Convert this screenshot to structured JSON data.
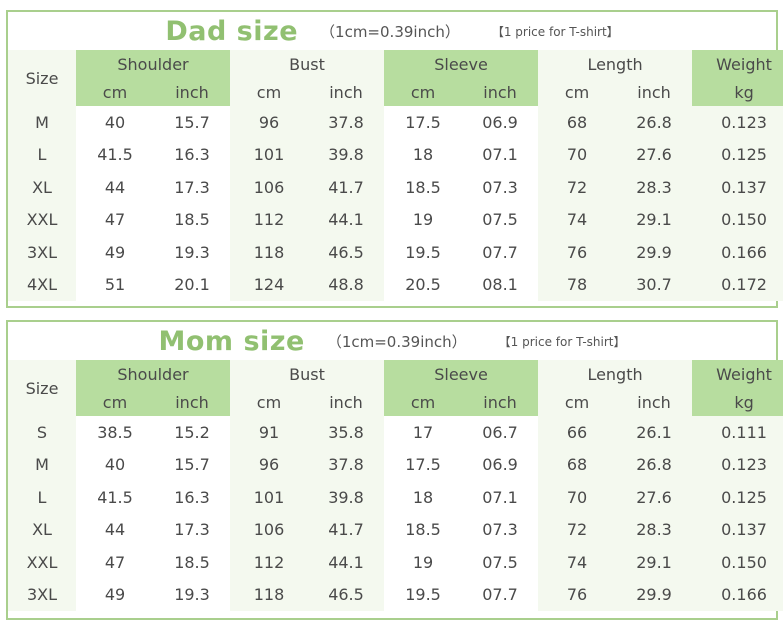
{
  "headers": {
    "size": "Size",
    "groups": [
      "Shoulder",
      "Bust",
      "Sleeve",
      "Length",
      "Weight"
    ],
    "sub_cm": "cm",
    "sub_inch": "inch",
    "sub_kg": "kg"
  },
  "dad": {
    "title": "Dad size",
    "unit": "（1cm=0.39inch）",
    "note": "【1 price for T-shirt】",
    "rows": [
      [
        "M",
        "40",
        "15.7",
        "96",
        "37.8",
        "17.5",
        "06.9",
        "68",
        "26.8",
        "0.123"
      ],
      [
        "L",
        "41.5",
        "16.3",
        "101",
        "39.8",
        "18",
        "07.1",
        "70",
        "27.6",
        "0.125"
      ],
      [
        "XL",
        "44",
        "17.3",
        "106",
        "41.7",
        "18.5",
        "07.3",
        "72",
        "28.3",
        "0.137"
      ],
      [
        "XXL",
        "47",
        "18.5",
        "112",
        "44.1",
        "19",
        "07.5",
        "74",
        "29.1",
        "0.150"
      ],
      [
        "3XL",
        "49",
        "19.3",
        "118",
        "46.5",
        "19.5",
        "07.7",
        "76",
        "29.9",
        "0.166"
      ],
      [
        "4XL",
        "51",
        "20.1",
        "124",
        "48.8",
        "20.5",
        "08.1",
        "78",
        "30.7",
        "0.172"
      ]
    ]
  },
  "mom": {
    "title": "Mom size",
    "unit": "（1cm=0.39inch）",
    "note": "【1 price for T-shirt】",
    "rows": [
      [
        "S",
        "38.5",
        "15.2",
        "91",
        "35.8",
        "17",
        "06.7",
        "66",
        "26.1",
        "0.111"
      ],
      [
        "M",
        "40",
        "15.7",
        "96",
        "37.8",
        "17.5",
        "06.9",
        "68",
        "26.8",
        "0.123"
      ],
      [
        "L",
        "41.5",
        "16.3",
        "101",
        "39.8",
        "18",
        "07.1",
        "70",
        "27.6",
        "0.125"
      ],
      [
        "XL",
        "44",
        "17.3",
        "106",
        "41.7",
        "18.5",
        "07.3",
        "72",
        "28.3",
        "0.137"
      ],
      [
        "XXL",
        "47",
        "18.5",
        "112",
        "44.1",
        "19",
        "07.5",
        "74",
        "29.1",
        "0.150"
      ],
      [
        "3XL",
        "49",
        "19.3",
        "118",
        "46.5",
        "19.5",
        "07.7",
        "76",
        "29.9",
        "0.166"
      ]
    ]
  },
  "colors": {
    "border": "#a9cf8d",
    "header_green": "#b7dd9f",
    "light_green": "#f4f9ef",
    "title_green": "#91c071"
  }
}
